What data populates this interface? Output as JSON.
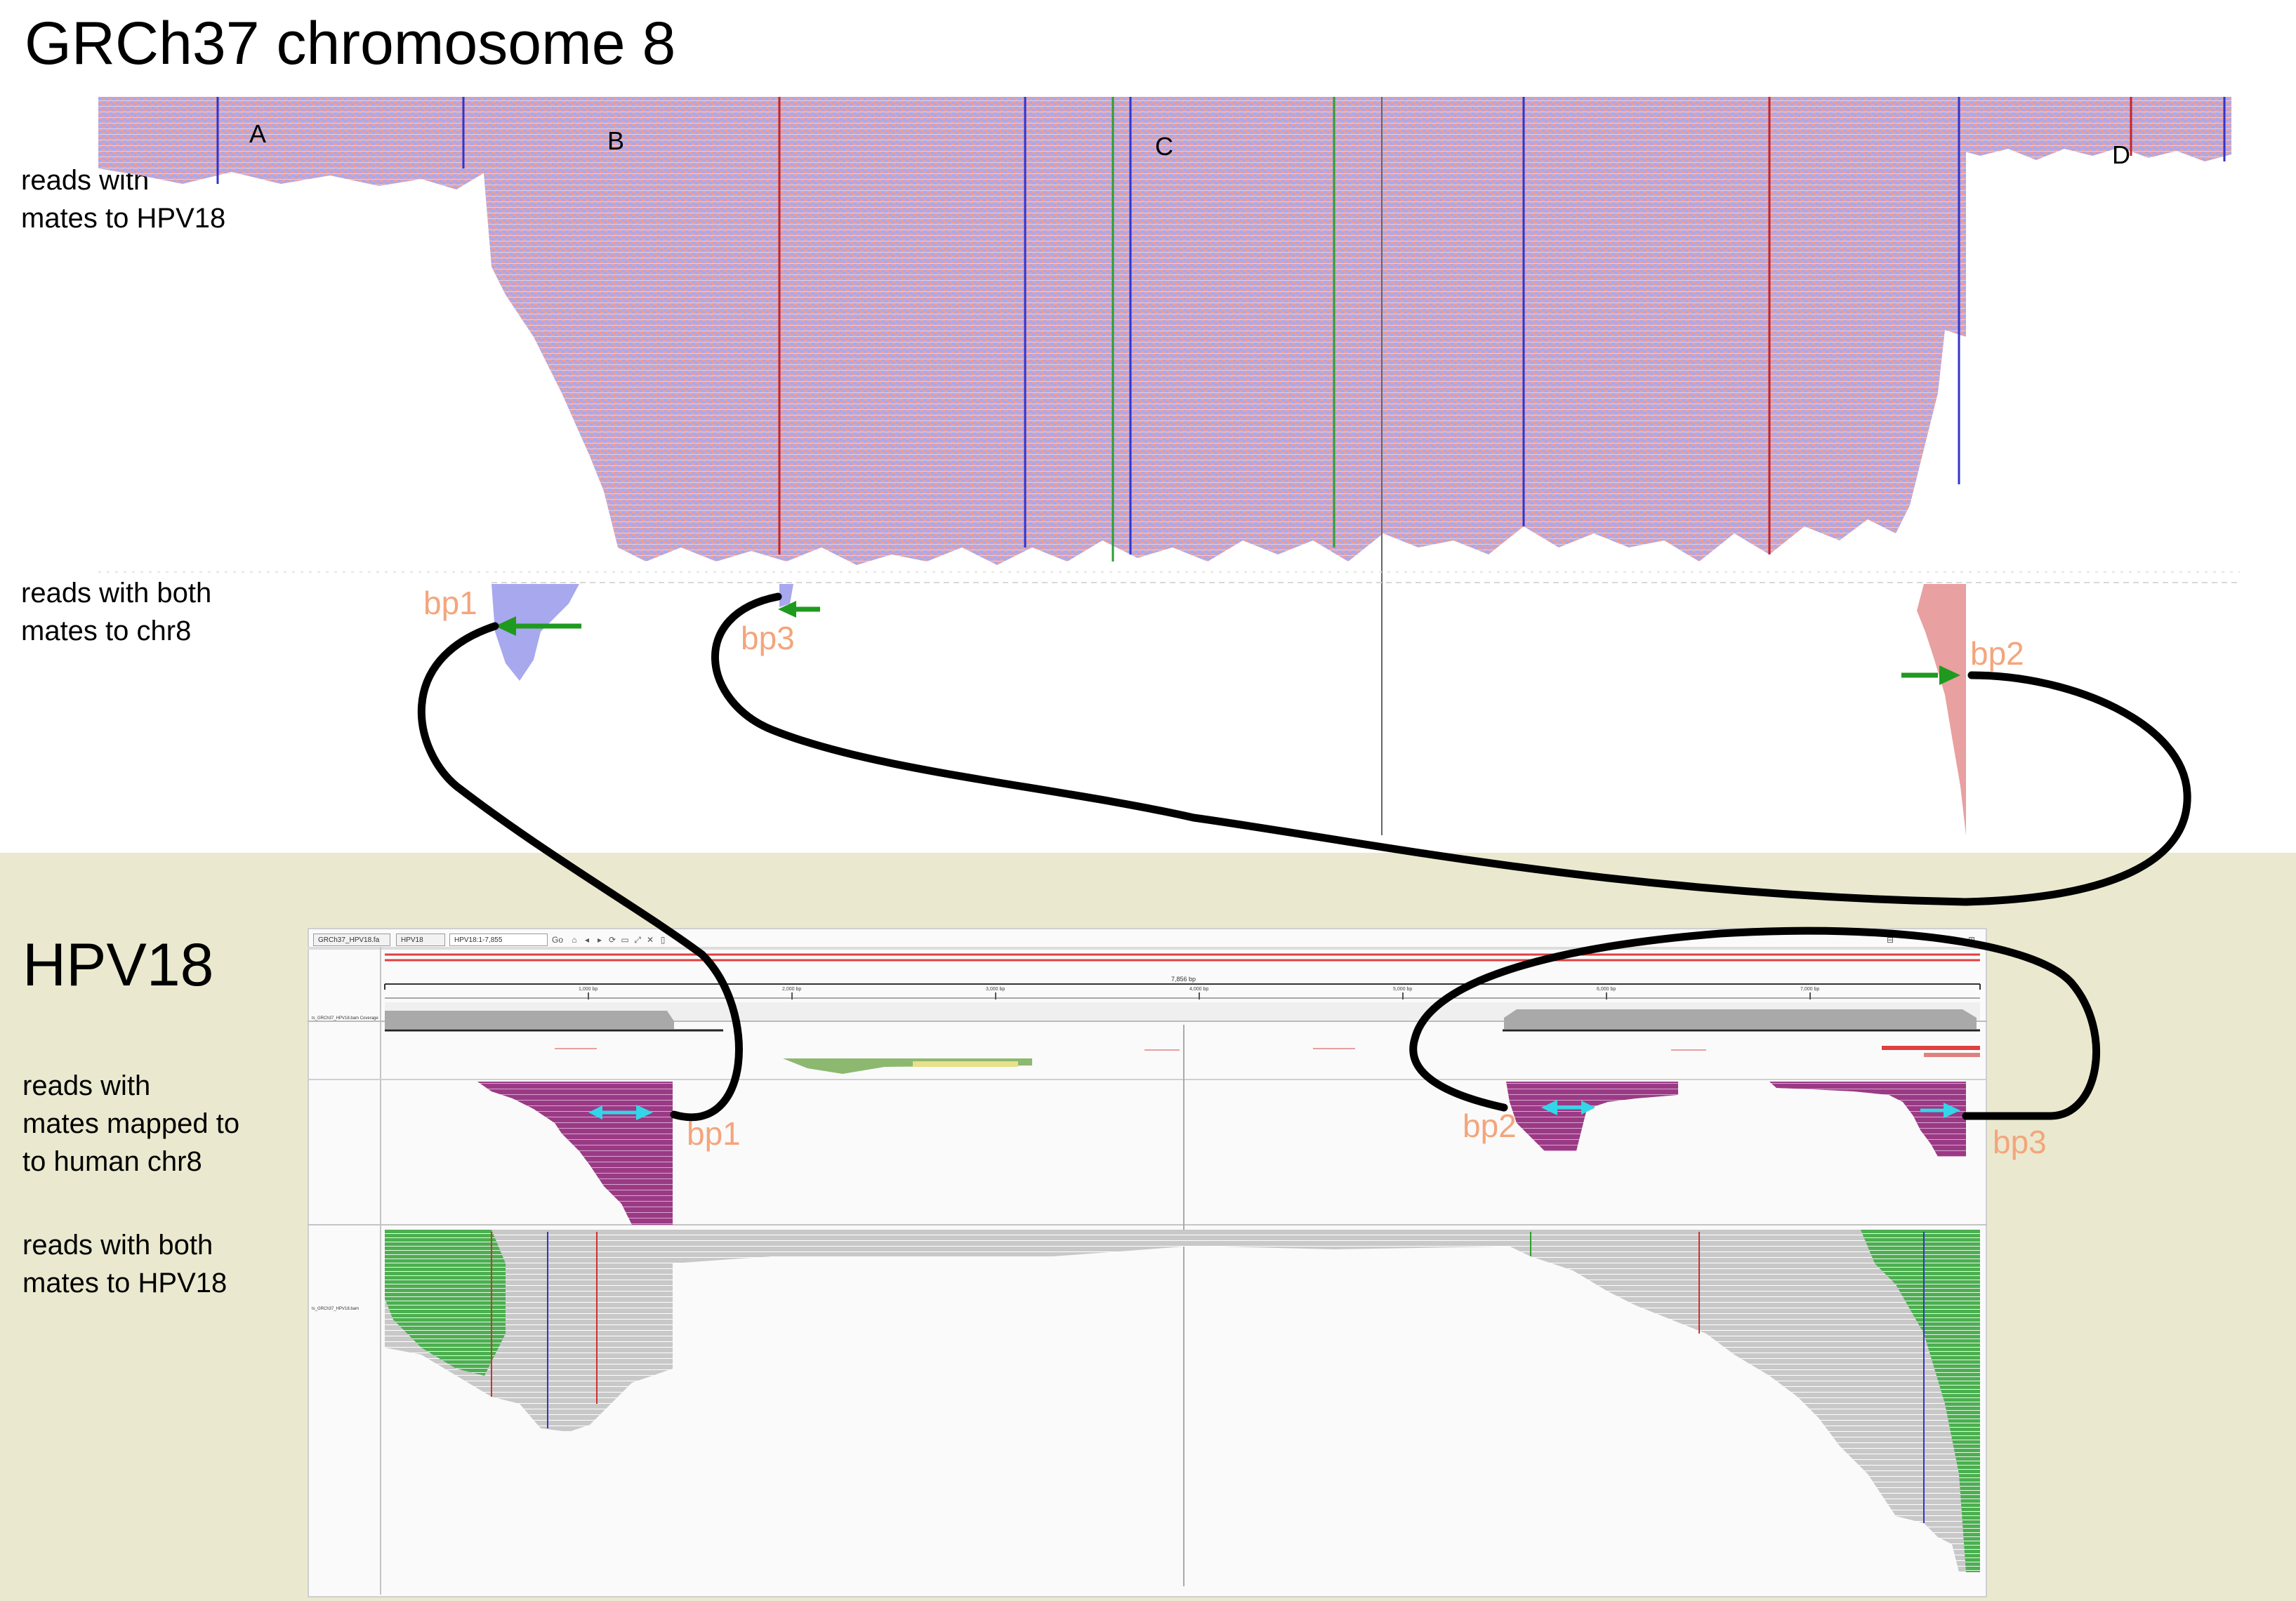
{
  "top_section": {
    "title": "GRCh37 chromosome 8",
    "track1_label": "reads with\nmates to HPV18",
    "track2_label": "reads with both\nmates to chr8",
    "region_letters": [
      "A",
      "B",
      "C",
      "D"
    ],
    "breakpoints": [
      "bp1",
      "bp3",
      "bp2"
    ]
  },
  "bottom_section": {
    "title": "HPV18",
    "track1_label": "reads with\nmates mapped to\nto human chr8",
    "track2_label": "reads with both\nmates to HPV18",
    "breakpoints": [
      "bp1",
      "bp2",
      "bp3"
    ]
  },
  "igv": {
    "genome_select": "GRCh37_HPV18.fa",
    "chrom_select": "HPV18",
    "locus": "HPV18:1-7,855",
    "go_label": "Go",
    "ruler_span": "7,856 bp",
    "ruler_ticks": [
      "1,000 bp",
      "2,000 bp",
      "3,000 bp",
      "4,000 bp",
      "5,000 bp",
      "6,000 bp",
      "7,000 bp"
    ],
    "coverage_track_name": "ts_GRCh37_HPV18.bam Coverage",
    "alignment_track_name": "ts_GRCh37_HPV18.bam"
  },
  "colors": {
    "bp_label": "#f4a57c",
    "green_arrow": "#1f9a1f",
    "cyan_arrow": "#33d6e8",
    "read_pink": "#e8a0a0",
    "read_blue": "#a8a8ee",
    "read_purple": "#9a3a85",
    "read_gray": "#c8c8c8",
    "read_green": "#4caf50",
    "bottom_bg": "#eae9cf",
    "connector": "#000000"
  }
}
